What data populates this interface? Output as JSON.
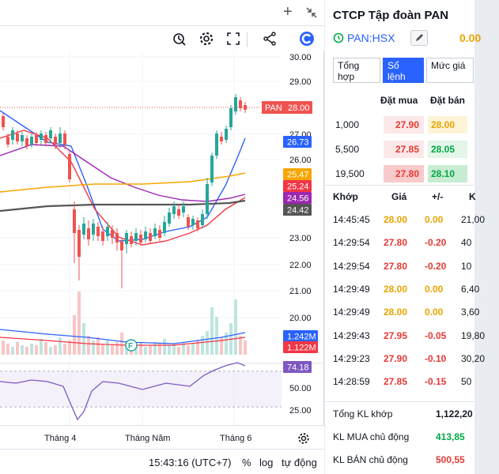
{
  "colors": {
    "up": "#26a69a",
    "down": "#ef5350",
    "ma_fast": "#2962ff",
    "ma_mid": "#f23645",
    "ma_slow": "#9c27b0",
    "ma_200": "#f7a600",
    "ma_long": "#555555",
    "rsi": "#7e57c2",
    "accent": "#2962ff"
  },
  "toolbar": {
    "icons": [
      "alert-icon",
      "settings-gear-icon",
      "fullscreen-icon",
      "share-icon",
      "brand-logo-icon"
    ]
  },
  "chart": {
    "price_ticks": [
      "30.00",
      "29.00",
      "27.00",
      "26.00",
      "23.00",
      "22.00",
      "21.00",
      "20.00"
    ],
    "price_labels": [
      {
        "text": "26.73",
        "color": "#2962ff"
      },
      {
        "text": "25.47",
        "color": "#f7a600"
      },
      {
        "text": "25.24",
        "color": "#f23645"
      },
      {
        "text": "24.56",
        "color": "#9c27b0"
      },
      {
        "text": "24.42",
        "color": "#555555"
      }
    ],
    "last_price": {
      "symbol": "PAN",
      "value": "28.00"
    },
    "volume_labels": [
      {
        "text": "1.242M",
        "color": "#2962ff"
      },
      {
        "text": "1.122M",
        "color": "#f23645"
      }
    ],
    "rsi": {
      "value": "74.18",
      "ticks": [
        "50.00",
        "25.00"
      ]
    },
    "months": [
      "Tháng 4",
      "Tháng Năm",
      "Tháng 6"
    ],
    "flag": "F"
  },
  "status": {
    "time": "15:43:16 (UTC+7)",
    "percent": "%",
    "log": "log",
    "auto": "tự động"
  },
  "panel": {
    "company": "CTCP Tập đoàn PAN",
    "ticker": "PAN:HSX",
    "price": "0.00",
    "tabs": [
      "Tổng hợp",
      "Sổ lệnh",
      "Mức giá"
    ],
    "orderbook": {
      "headers": [
        "Đặt mua",
        "Đặt bán"
      ],
      "rows": [
        {
          "vol": "1,000",
          "bid": "27.90",
          "ask": "28.00",
          "ask_color": "#e8a400",
          "bid_bg": "#fce8e8",
          "ask_bg": "#fdf3d6"
        },
        {
          "vol": "5,500",
          "bid": "27.85",
          "ask": "28.05",
          "ask_color": "#00a843",
          "bid_bg": "#fce8e8",
          "ask_bg": "#e3f6e8"
        },
        {
          "vol": "19,500",
          "bid": "27.80",
          "ask": "28.10",
          "ask_color": "#00a843",
          "bid_bg": "#f8caca",
          "ask_bg": "#c8ecd2"
        }
      ]
    },
    "trades": {
      "headers": [
        "Khớp",
        "Giá",
        "+/-",
        "K"
      ],
      "rows": [
        {
          "time": "14:45:45",
          "price": "28.00",
          "change": "0.00",
          "vol": "21,00",
          "color": "yellow"
        },
        {
          "time": "14:29:54",
          "price": "27.80",
          "change": "-0.20",
          "vol": "40",
          "color": "red"
        },
        {
          "time": "14:29:54",
          "price": "27.80",
          "change": "-0.20",
          "vol": "10",
          "color": "red"
        },
        {
          "time": "14:29:49",
          "price": "28.00",
          "change": "0.00",
          "vol": "6,40",
          "color": "yellow"
        },
        {
          "time": "14:29:49",
          "price": "28.00",
          "change": "0.00",
          "vol": "3,60",
          "color": "yellow"
        },
        {
          "time": "14:29:43",
          "price": "27.95",
          "change": "-0.05",
          "vol": "19,80",
          "color": "red"
        },
        {
          "time": "14:29:23",
          "price": "27.90",
          "change": "-0.10",
          "vol": "30,20",
          "color": "red"
        },
        {
          "time": "14:28:59",
          "price": "27.85",
          "change": "-0.15",
          "vol": "50",
          "color": "red"
        }
      ]
    },
    "summary": [
      {
        "label": "Tổng KL khớp",
        "value": "1,122,20",
        "color": "#131722"
      },
      {
        "label": "KL MUA chủ động",
        "value": "413,85",
        "color": "#00a843"
      },
      {
        "label": "KL BÁN chủ động",
        "value": "500,55",
        "color": "#e53935"
      }
    ]
  }
}
